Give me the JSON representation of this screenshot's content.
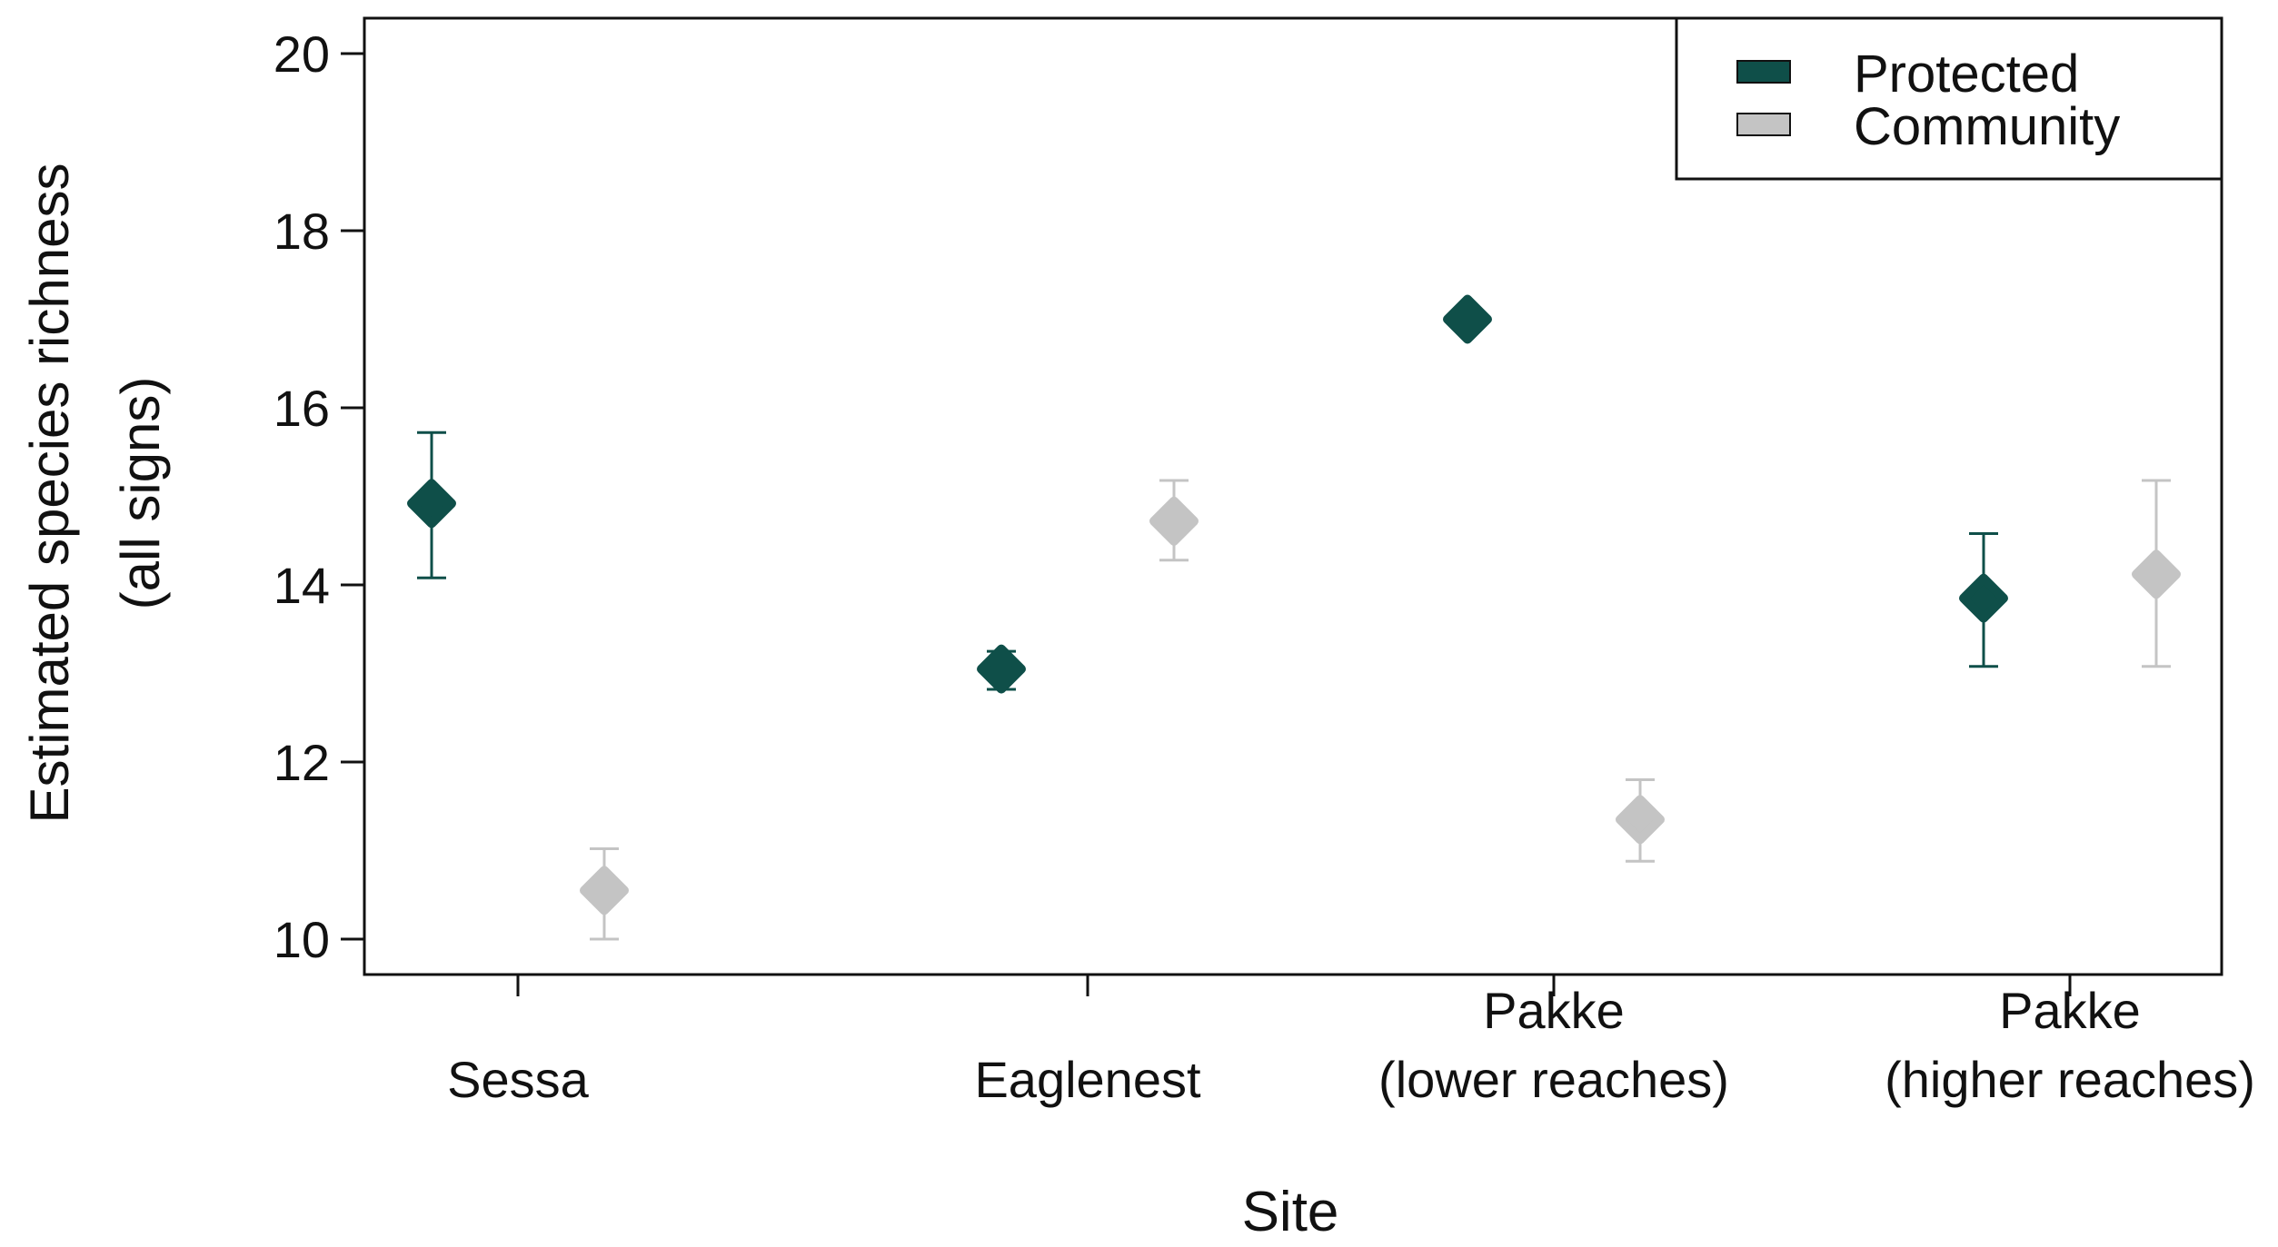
{
  "chart_data": {
    "type": "scatter",
    "xlabel": "Site",
    "ylabel_lines": [
      "Estimated species richness",
      "(all signs)"
    ],
    "categories": [
      [
        "Sessa"
      ],
      [
        "Eaglenest"
      ],
      [
        "Pakke",
        "(lower reaches)"
      ],
      [
        "Pakke",
        "(higher reaches)"
      ]
    ],
    "ylim": [
      9.6,
      20.4
    ],
    "yticks": [
      10,
      12,
      14,
      16,
      18,
      20
    ],
    "legend_position": "top-right",
    "grid": false,
    "series": [
      {
        "name": "Protected",
        "color": "#0f4f49",
        "points": [
          {
            "value": 14.92,
            "low": 14.08,
            "high": 15.72
          },
          {
            "value": 13.05,
            "low": 12.82,
            "high": 13.25
          },
          {
            "value": 17.0,
            "low": 17.0,
            "high": 17.0
          },
          {
            "value": 13.85,
            "low": 13.08,
            "high": 14.58
          }
        ]
      },
      {
        "name": "Community",
        "color": "#c4c4c4",
        "points": [
          {
            "value": 10.55,
            "low": 10.0,
            "high": 11.02
          },
          {
            "value": 14.72,
            "low": 14.28,
            "high": 15.18
          },
          {
            "value": 11.35,
            "low": 10.88,
            "high": 11.8
          },
          {
            "value": 14.12,
            "low": 13.08,
            "high": 15.18
          }
        ]
      }
    ]
  }
}
